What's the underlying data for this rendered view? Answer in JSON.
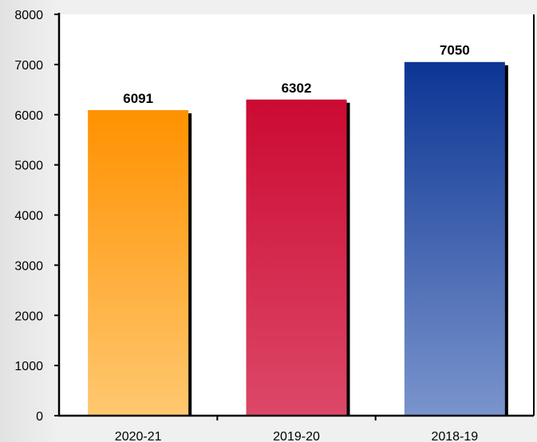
{
  "chart_data": {
    "type": "bar",
    "categories": [
      "2020-21",
      "2019-20",
      "2018-19"
    ],
    "values": [
      6091,
      6302,
      7050
    ],
    "data_labels": [
      "6091",
      "6302",
      "7050"
    ],
    "y_ticks": [
      "0",
      "1000",
      "2000",
      "3000",
      "4000",
      "5000",
      "6000",
      "7000",
      "8000"
    ],
    "ylim": [
      0,
      8000
    ],
    "grid": false,
    "legend": "none",
    "colors": [
      {
        "top": "#ff9100",
        "bottom": "#ffc870"
      },
      {
        "top": "#cc0a32",
        "bottom": "#dc4868"
      },
      {
        "top": "#0c3594",
        "bottom": "#7a94cc"
      }
    ],
    "bar_shadow_color": "#000000",
    "plot_background": "#ffffff"
  }
}
